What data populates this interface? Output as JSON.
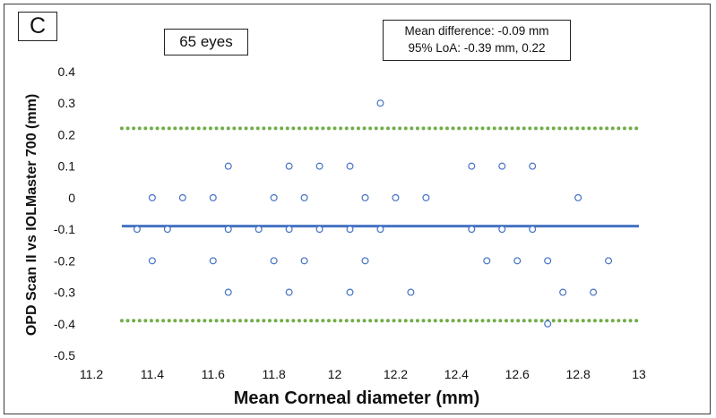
{
  "panel_label": "C",
  "sample_label": "65 eyes",
  "stats": {
    "line1": "Mean difference: -0.09 mm",
    "line2": "95% LoA: -0.39 mm, 0.22"
  },
  "colors": {
    "mean_line": "#4472c4",
    "loa_line": "#70ad47",
    "markers": "#4472c4"
  },
  "chart_data": {
    "type": "scatter",
    "xlabel": "Mean Corneal diameter (mm)",
    "ylabel": "OPD Scan II vs IOLMaster 700 (mm)",
    "xlim": [
      11.2,
      13
    ],
    "ylim": [
      -0.5,
      0.4
    ],
    "x_ticks": [
      "11.2",
      "11.4",
      "11.6",
      "11.8",
      "12",
      "12.2",
      "12.4",
      "12.6",
      "12.8",
      "13"
    ],
    "y_ticks": [
      "0.4",
      "0.3",
      "0.2",
      "0.1",
      "0",
      "-0.1",
      "-0.2",
      "-0.3",
      "-0.4",
      "-0.5"
    ],
    "grid": false,
    "mean_difference": -0.09,
    "loa_upper": 0.22,
    "loa_lower": -0.39,
    "line_x_range": [
      11.3,
      13
    ],
    "points": [
      [
        11.35,
        -0.1
      ],
      [
        11.4,
        0
      ],
      [
        11.4,
        -0.2
      ],
      [
        11.45,
        -0.1
      ],
      [
        11.5,
        0
      ],
      [
        11.6,
        0
      ],
      [
        11.6,
        -0.2
      ],
      [
        11.65,
        0.1
      ],
      [
        11.65,
        -0.1
      ],
      [
        11.65,
        -0.3
      ],
      [
        11.75,
        -0.1
      ],
      [
        11.8,
        0
      ],
      [
        11.8,
        -0.2
      ],
      [
        11.85,
        0.1
      ],
      [
        11.85,
        -0.1
      ],
      [
        11.85,
        -0.3
      ],
      [
        11.9,
        0
      ],
      [
        11.9,
        -0.2
      ],
      [
        11.95,
        0.1
      ],
      [
        11.95,
        -0.1
      ],
      [
        12.05,
        0.1
      ],
      [
        12.05,
        -0.1
      ],
      [
        12.05,
        -0.3
      ],
      [
        12.1,
        0
      ],
      [
        12.1,
        -0.2
      ],
      [
        12.15,
        0.3
      ],
      [
        12.15,
        -0.1
      ],
      [
        12.2,
        0
      ],
      [
        12.25,
        -0.3
      ],
      [
        12.3,
        0
      ],
      [
        12.45,
        0.1
      ],
      [
        12.45,
        -0.1
      ],
      [
        12.5,
        -0.2
      ],
      [
        12.55,
        0.1
      ],
      [
        12.55,
        -0.1
      ],
      [
        12.6,
        -0.2
      ],
      [
        12.65,
        0.1
      ],
      [
        12.65,
        -0.1
      ],
      [
        12.7,
        -0.2
      ],
      [
        12.7,
        -0.4
      ],
      [
        12.75,
        -0.3
      ],
      [
        12.8,
        0
      ],
      [
        12.85,
        -0.3
      ],
      [
        12.9,
        -0.2
      ]
    ]
  }
}
